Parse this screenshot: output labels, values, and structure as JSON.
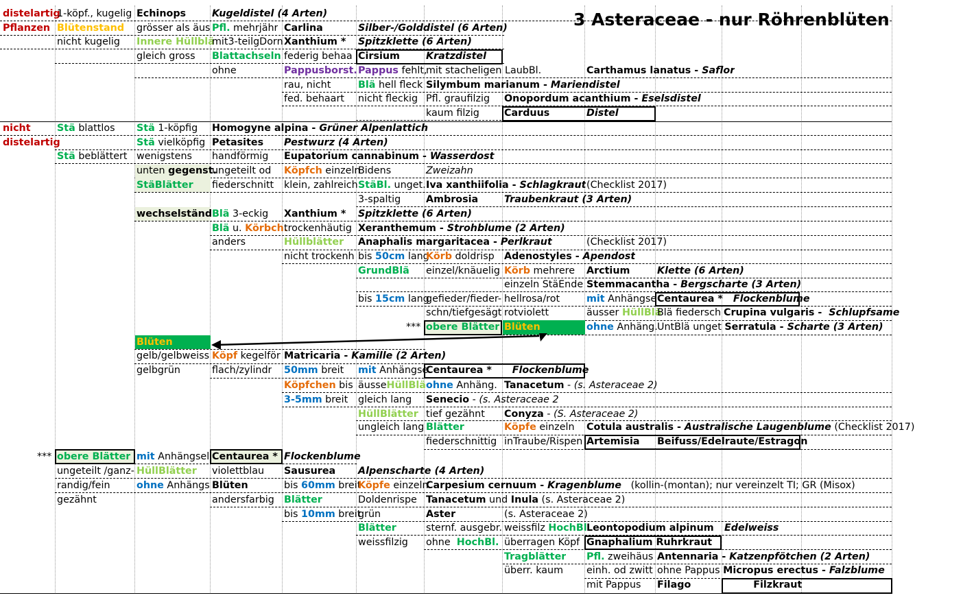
{
  "title": "3 Asteraceae -  nur Röhrenblüten",
  "colors": {
    "red": "#c00000",
    "yellow": "#ffc000",
    "lightgreen": "#92d050",
    "green": "#00b050",
    "purple": "#7030a0",
    "blue": "#0070c0",
    "orange": "#e46c0a",
    "green_fill": "#00b050",
    "pale_fill": "#ebf1de"
  },
  "rows": [
    [
      [
        "d1",
        "distelartig",
        "red,b"
      ],
      [
        "d2",
        "1-köpf., kugelig"
      ],
      [
        "d3",
        "Echinops",
        "b"
      ],
      [
        "d4",
        "Kugeldistel  (4 Arten)",
        "b,i"
      ]
    ],
    [
      [
        "d1",
        "Pflanzen",
        "red,b"
      ],
      [
        "d2",
        "Blütenstand",
        "yellow,b"
      ],
      [
        "d3",
        "grösser als äus"
      ],
      [
        "d4",
        [
          [
            "Pfl.",
            "green,b"
          ],
          [
            " mehrjähr"
          ]
        ]
      ],
      [
        "d5",
        "Carlina",
        "b"
      ],
      [
        "d6",
        "Silber-/Golddistel (6 Arten)",
        "b,i"
      ]
    ],
    [
      [
        "d2",
        "nicht kugelig"
      ],
      [
        "d3",
        "Innere Hüllblä",
        "lightgreen,b"
      ],
      [
        "d4",
        "mit3-teilgDorn"
      ],
      [
        "d5",
        "Xanthium *",
        "b"
      ],
      [
        "d6",
        "Spitzklette (6 Arten)",
        "b,i"
      ]
    ],
    [
      [
        "d3",
        "gleich gross"
      ],
      [
        "d4",
        "Blattachseln",
        "green,b"
      ],
      [
        "d5",
        "federig behaa"
      ],
      [
        "d6",
        "Cirsium",
        "b"
      ],
      [
        "d7",
        "Kratzdistel",
        "b,i"
      ]
    ],
    [
      [
        "d4",
        "ohne"
      ],
      [
        "d5",
        "Pappusborst.",
        "purple,b"
      ],
      [
        "d6",
        [
          [
            "Pappus",
            "purple,b"
          ],
          [
            " fehlt,"
          ]
        ]
      ],
      [
        "d7",
        "mit stacheligen LaubBl."
      ],
      [
        "d9",
        [
          [
            "Carthamus lanatus - ",
            "b"
          ],
          [
            "Saflor",
            "b,i"
          ]
        ]
      ]
    ],
    [
      [
        "d5",
        "rau, nicht"
      ],
      [
        "d6",
        [
          [
            "Blä",
            "green,b"
          ],
          [
            " hell fleck"
          ]
        ]
      ],
      [
        "d7",
        [
          [
            "Silymbum marianum - ",
            "b"
          ],
          [
            "Mariendistel",
            "b,i"
          ]
        ]
      ]
    ],
    [
      [
        "d5",
        "fed. behaart"
      ],
      [
        "d6",
        "nicht fleckig"
      ],
      [
        "d7",
        "Pfl. graufilzig"
      ],
      [
        "d8",
        [
          [
            "Onopordum acanthium - ",
            "b"
          ],
          [
            "Eselsdistel",
            "b,i"
          ]
        ]
      ]
    ],
    [
      [
        "d7",
        "kaum filzig"
      ],
      [
        "d8",
        "Carduus",
        "b"
      ],
      [
        "d9",
        "Distel",
        "b,i"
      ]
    ],
    [
      [
        "d1",
        "nicht",
        "red,b"
      ],
      [
        "d2",
        [
          [
            "Stä",
            "green,b"
          ],
          [
            " blattlos"
          ]
        ]
      ],
      [
        "d3",
        [
          [
            "Stä",
            "green,b"
          ],
          [
            " 1-köpfig"
          ]
        ]
      ],
      [
        "d4",
        [
          [
            "Homogyne alpina - ",
            "b"
          ],
          [
            "Grüner Alpenlattich",
            "b,i"
          ]
        ]
      ]
    ],
    [
      [
        "d1",
        "distelartig",
        "red,b"
      ],
      [
        "d3",
        [
          [
            "Stä",
            "green,b"
          ],
          [
            " vielköpfig"
          ]
        ]
      ],
      [
        "d4",
        "Petasites",
        "b"
      ],
      [
        "d5",
        "Pestwurz (4 Arten)",
        "b,i"
      ]
    ],
    [
      [
        "d2",
        [
          [
            "Stä",
            "green,b"
          ],
          [
            " beblättert"
          ]
        ]
      ],
      [
        "d3",
        "wenigstens"
      ],
      [
        "d4",
        "handförmig"
      ],
      [
        "d5",
        [
          [
            "Eupatorium cannabinum - ",
            "b"
          ],
          [
            "Wasserdost",
            "b,i"
          ]
        ]
      ]
    ],
    [
      [
        "d3",
        [
          [
            "unten "
          ],
          [
            "gegenst.",
            "b"
          ]
        ]
      ],
      [
        "d4",
        "ungeteilt od"
      ],
      [
        "d5",
        [
          [
            "Köpfch",
            "orange,b"
          ],
          [
            " einzeln"
          ]
        ]
      ],
      [
        "d6",
        "Bidens"
      ],
      [
        "d7",
        "Zweizahn",
        "i"
      ]
    ],
    [
      [
        "d3",
        "StäBlätter",
        "green,b"
      ],
      [
        "d4",
        "fiederschnitt"
      ],
      [
        "d5",
        "klein, zahlreich"
      ],
      [
        "d6",
        [
          [
            "StäBl.",
            "green,b"
          ],
          [
            " unget."
          ]
        ]
      ],
      [
        "d7",
        [
          [
            "Iva xanthiifolia - ",
            "b"
          ],
          [
            "Schlagkraut",
            "b,i"
          ]
        ]
      ],
      [
        "d9",
        "(Checklist 2017)"
      ]
    ],
    [
      [
        "d6",
        "3-spaltig"
      ],
      [
        "d7",
        "Ambrosia",
        "b"
      ],
      [
        "d8",
        "Traubenkraut (3 Arten)",
        "b,i"
      ]
    ],
    [
      [
        "d3",
        "wechselständ.",
        "b"
      ],
      [
        "d4",
        [
          [
            "Blä",
            "green,b"
          ],
          [
            " 3-eckig"
          ]
        ]
      ],
      [
        "d5",
        "Xanthium *",
        "b"
      ],
      [
        "d6",
        "Spitzklette (6 Arten)",
        "b,i"
      ]
    ],
    [
      [
        "d4",
        [
          [
            "Blä",
            "green,b"
          ],
          [
            " u. "
          ],
          [
            "Körbch.",
            "orange,b"
          ]
        ]
      ],
      [
        "d5",
        "trockenhäutig"
      ],
      [
        "d6",
        [
          [
            "Xeranthemum - ",
            "b"
          ],
          [
            "Strohblume (2 Arten)",
            "b,i"
          ]
        ]
      ]
    ],
    [
      [
        "d4",
        "anders"
      ],
      [
        "d5",
        "Hüllblätter",
        "lightgreen,b"
      ],
      [
        "d6",
        [
          [
            "Anaphalis margaritacea - ",
            "b"
          ],
          [
            "Perlkraut",
            "b,i"
          ]
        ]
      ],
      [
        "d9",
        "(Checklist 2017)"
      ]
    ],
    [
      [
        "d5",
        "nicht trockenh"
      ],
      [
        "d6",
        [
          [
            "bis "
          ],
          [
            "50cm",
            "blue,b"
          ],
          [
            " lang"
          ]
        ]
      ],
      [
        "d7",
        [
          [
            "Körb",
            "orange,b"
          ],
          [
            " doldrisp"
          ]
        ]
      ],
      [
        "d8",
        [
          [
            "Adenostyles - ",
            "b"
          ],
          [
            "Apendost",
            "b,i"
          ]
        ]
      ]
    ],
    [
      [
        "d6",
        "GrundBlä",
        "green,b"
      ],
      [
        "d7",
        "einzel/knäuelig"
      ],
      [
        "d8",
        [
          [
            "Körb",
            "orange,b"
          ],
          [
            " mehrere"
          ]
        ]
      ],
      [
        "d9",
        "Arctium",
        "b"
      ],
      [
        "d10",
        "Klette (6 Arten)",
        "b,i"
      ]
    ],
    [
      [
        "d8",
        "einzeln StäEnde"
      ],
      [
        "d9",
        [
          [
            "Stemmacantha - ",
            "b"
          ],
          [
            "Bergscharte (3 Arten)",
            "b,i"
          ]
        ]
      ]
    ],
    [
      [
        "d6",
        [
          [
            "bis "
          ],
          [
            "15cm",
            "blue,b"
          ],
          [
            " lang"
          ]
        ]
      ],
      [
        "d7",
        "gefieder/fieder-"
      ],
      [
        "d8",
        "hellrosa/rot"
      ],
      [
        "d9",
        [
          [
            "mit",
            "blue,b"
          ],
          [
            " Anhängse"
          ]
        ]
      ],
      [
        "d10",
        [
          [
            "Centaurea *   ",
            "b"
          ],
          [
            "Flockenblume",
            "b,i"
          ]
        ]
      ]
    ],
    [
      [
        "d7",
        "schn/tiefgesägt"
      ],
      [
        "d8",
        "rotviolett"
      ],
      [
        "d9",
        [
          [
            "äusser "
          ],
          [
            "HüllBlä",
            "lightgreen,b"
          ]
        ]
      ],
      [
        "d10",
        "Blä fiedersch"
      ],
      [
        "d11",
        [
          [
            "Crupina vulgaris -  ",
            "b"
          ],
          [
            "Schlupfsame",
            "b,i"
          ]
        ]
      ]
    ],
    [
      [
        "d6r",
        "***"
      ],
      [
        "d7",
        "obere Blätter",
        "green,b"
      ],
      [
        "d8",
        "Blüten",
        "yellow,b"
      ],
      [
        "d9",
        [
          [
            "ohne",
            "blue,b"
          ],
          [
            " Anhäng."
          ]
        ]
      ],
      [
        "d10",
        [
          [
            "UntBlä unget "
          ],
          [
            "Serratula - ",
            "b"
          ],
          [
            "Scharte (3 Arten)",
            "b,i"
          ]
        ]
      ]
    ],
    [
      [
        "d3",
        "Blüten",
        "yellow,b"
      ]
    ],
    [
      [
        "d3",
        "gelb/gelbweiss"
      ],
      [
        "d4",
        [
          [
            "Köpf",
            "orange,b"
          ],
          [
            " kegelför"
          ]
        ]
      ],
      [
        "d5",
        [
          [
            "Matricaria - ",
            "b"
          ],
          [
            "Kamille (2 Arten)",
            "b,i"
          ]
        ]
      ]
    ],
    [
      [
        "d3",
        "gelbgrün"
      ],
      [
        "d4",
        "flach/zylindr"
      ],
      [
        "d5",
        [
          [
            "50mm",
            "blue,b"
          ],
          [
            " breit"
          ]
        ]
      ],
      [
        "d6",
        [
          [
            "mit",
            "blue,b"
          ],
          [
            " Anhängse"
          ]
        ]
      ],
      [
        "d7",
        [
          [
            "Centaurea *      ",
            "b"
          ],
          [
            "Flockenblume",
            "b,i"
          ]
        ]
      ]
    ],
    [
      [
        "d5",
        [
          [
            "Köpfchen",
            "orange,b"
          ],
          [
            " bis"
          ]
        ]
      ],
      [
        "d6",
        [
          [
            "äusse"
          ],
          [
            "HüllBlä",
            "lightgreen,b"
          ]
        ]
      ],
      [
        "d7",
        [
          [
            "ohne",
            "blue,b"
          ],
          [
            " Anhäng."
          ]
        ]
      ],
      [
        "d8",
        [
          [
            "Tanacetum",
            "b"
          ],
          [
            " - "
          ],
          [
            "(s. Asteraceae 2)",
            "i"
          ]
        ]
      ]
    ],
    [
      [
        "d5",
        [
          [
            "3-5mm",
            "blue,b"
          ],
          [
            " breit"
          ]
        ]
      ],
      [
        "d6",
        "gleich lang"
      ],
      [
        "d7",
        [
          [
            "Senecio",
            "b"
          ],
          [
            " - "
          ],
          [
            "(s. Asteraceae 2",
            "i"
          ]
        ]
      ]
    ],
    [
      [
        "d6",
        "HüllBlätter",
        "lightgreen,b"
      ],
      [
        "d7",
        "tief gezähnt"
      ],
      [
        "d8",
        [
          [
            "Conyza",
            "b"
          ],
          [
            " - "
          ],
          [
            "(S. Asteraceae 2)",
            "i"
          ]
        ]
      ]
    ],
    [
      [
        "d6",
        "ungleich lang"
      ],
      [
        "d7",
        "Blätter",
        "green,b"
      ],
      [
        "d8",
        [
          [
            "Köpfe",
            "orange,b"
          ],
          [
            " einzeln"
          ]
        ]
      ],
      [
        "d9",
        [
          [
            "Cotula australis - ",
            "b"
          ],
          [
            "Australische Laugenblume",
            "b,i"
          ],
          [
            " (Checklist 2017)"
          ]
        ]
      ]
    ],
    [
      [
        "d7",
        "fiederschnittig"
      ],
      [
        "d8",
        "inTraube/Rispen"
      ],
      [
        "d9",
        "Artemisia",
        "b"
      ],
      [
        "d10",
        "Beifuss/Edelraute/Estragon",
        "b"
      ]
    ],
    [
      [
        "d1r",
        "***"
      ],
      [
        "d2",
        "obere Blätter",
        "green,b"
      ],
      [
        "d3",
        [
          [
            "mit",
            "blue,b"
          ],
          [
            " Anhängsel"
          ]
        ]
      ],
      [
        "d4",
        "Centaurea *",
        "b"
      ],
      [
        "d5",
        "Flockenblume",
        "b,i"
      ]
    ],
    [
      [
        "d2",
        "ungeteilt /ganz-"
      ],
      [
        "d3",
        "HüllBlätter",
        "lightgreen,b"
      ],
      [
        "d4",
        "violettblau"
      ],
      [
        "d5",
        "Sausurea",
        "b"
      ],
      [
        "d6",
        "Alpenscharte (4 Arten)",
        "b,i"
      ]
    ],
    [
      [
        "d2",
        "randig/fein"
      ],
      [
        "d3",
        [
          [
            "ohne",
            "blue,b"
          ],
          [
            " Anhängs"
          ]
        ]
      ],
      [
        "d4",
        "Blüten",
        "b"
      ],
      [
        "d5",
        [
          [
            "bis "
          ],
          [
            "60mm",
            "blue,b"
          ],
          [
            " breit"
          ]
        ]
      ],
      [
        "d6",
        [
          [
            "Köpfe",
            "orange,b"
          ],
          [
            " einzeln"
          ]
        ]
      ],
      [
        "d7",
        [
          [
            "Carpesium cernuum - ",
            "b"
          ],
          [
            "Kragenblume",
            "b,i"
          ],
          [
            "   (kollin-(montan); nur vereinzelt TI; GR (Misox)"
          ]
        ]
      ]
    ],
    [
      [
        "d2",
        "gezähnt"
      ],
      [
        "d4",
        "andersfarbig"
      ],
      [
        "d5",
        "Blätter",
        "green,b"
      ],
      [
        "d6",
        "Doldenrispe"
      ],
      [
        "d7",
        [
          [
            "Tanacetum",
            "b"
          ],
          [
            " und "
          ],
          [
            "Inula",
            "b"
          ],
          [
            " (s. Asteraceae 2)"
          ]
        ]
      ]
    ],
    [
      [
        "d5",
        [
          [
            "bis "
          ],
          [
            "10mm",
            "blue,b"
          ],
          [
            " breit"
          ]
        ]
      ],
      [
        "d6",
        "grün"
      ],
      [
        "d7",
        "Aster",
        "b"
      ],
      [
        "d8",
        "(s. Asteraceae 2)"
      ]
    ],
    [
      [
        "d6",
        "Blätter",
        "green,b"
      ],
      [
        "d7",
        "sternf. ausgebr."
      ],
      [
        "d8",
        [
          [
            "weissfilz "
          ],
          [
            "HochBl",
            "green,b"
          ]
        ]
      ],
      [
        "d9",
        "Leontopodium alpinum",
        "b"
      ],
      [
        "d10r",
        "Edelweiss",
        "b,i"
      ]
    ],
    [
      [
        "d6",
        "weissfilzig"
      ],
      [
        "d7",
        [
          [
            "ohne  "
          ],
          [
            "HochBl.",
            "green,b"
          ]
        ]
      ],
      [
        "d8",
        "überragen Köpf"
      ],
      [
        "d9",
        "Gnaphalium    Ruhrkraut",
        "b"
      ]
    ],
    [
      [
        "d8",
        "Tragblätter",
        "green,b"
      ],
      [
        "d9",
        [
          [
            "Pfl.",
            "green,b"
          ],
          [
            " zweihäus"
          ]
        ]
      ],
      [
        "d10",
        [
          [
            "Antennaria - ",
            "b"
          ],
          [
            "Katzenpfötchen (2 Arten)",
            "b,i"
          ]
        ]
      ]
    ],
    [
      [
        "d8",
        "überr. kaum"
      ],
      [
        "d9",
        "einh. od zwitt"
      ],
      [
        "d10",
        [
          [
            "ohne Pappus "
          ],
          [
            "Micropus erectus - ",
            "b"
          ],
          [
            "Falzblume",
            "b,i"
          ]
        ]
      ]
    ],
    [
      [
        "d9",
        "mit Pappus"
      ],
      [
        "d10b",
        [
          [
            "Filago",
            "b"
          ],
          [
            "                    "
          ],
          [
            "Filzkraut",
            "b"
          ]
        ]
      ]
    ]
  ]
}
